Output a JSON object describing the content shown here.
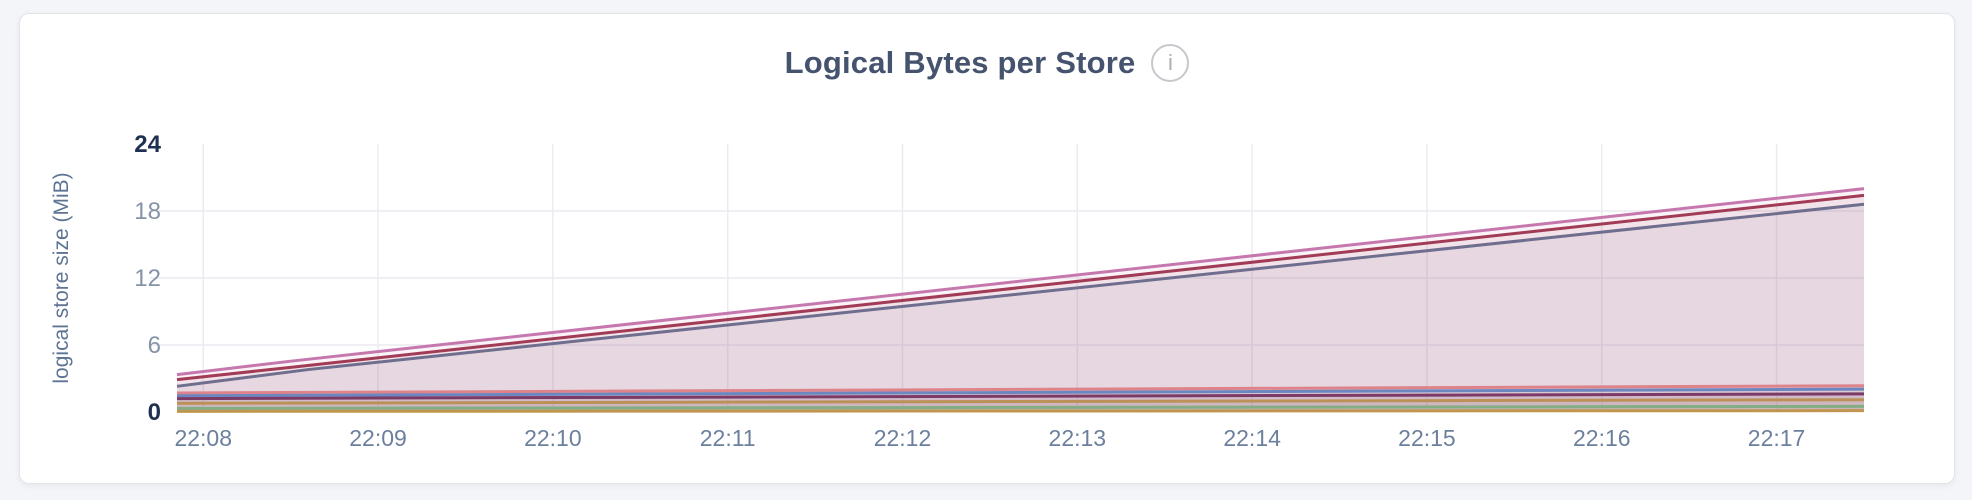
{
  "page": {
    "background": "#f4f5f8"
  },
  "header": {
    "title": "Logical Bytes per Store",
    "info_glyph": "i"
  },
  "chart_data": {
    "type": "area",
    "title": "Logical Bytes per Store",
    "xlabel": "",
    "ylabel": "logical store size (MiB)",
    "ylim": [
      0,
      24
    ],
    "y_ticks": [
      0,
      6,
      12,
      18,
      24
    ],
    "y_tick_emphasis": [
      0,
      24
    ],
    "y_gridlines": [
      6,
      12,
      18
    ],
    "grid": "on",
    "legend": "none",
    "x_domain_minutes": [
      427.85,
      437.5
    ],
    "x_ticks": [
      {
        "minute": 428,
        "label": "22:08"
      },
      {
        "minute": 429,
        "label": "22:09"
      },
      {
        "minute": 430,
        "label": "22:10"
      },
      {
        "minute": 431,
        "label": "22:11"
      },
      {
        "minute": 432,
        "label": "22:12"
      },
      {
        "minute": 433,
        "label": "22:13"
      },
      {
        "minute": 434,
        "label": "22:14"
      },
      {
        "minute": 435,
        "label": "22:15"
      },
      {
        "minute": 436,
        "label": "22:16"
      },
      {
        "minute": 437,
        "label": "22:17"
      }
    ],
    "series": [
      {
        "name": "series-1",
        "color": "#c678ae",
        "points": [
          [
            427.85,
            3.35
          ],
          [
            428.5,
            4.55
          ],
          [
            437.5,
            20.0
          ]
        ]
      },
      {
        "name": "series-2",
        "color": "#a23b55",
        "points": [
          [
            427.85,
            2.9
          ],
          [
            428.5,
            4.0
          ],
          [
            437.5,
            19.4
          ]
        ]
      },
      {
        "name": "series-3",
        "color": "#6f6e8e",
        "points": [
          [
            427.85,
            2.3
          ],
          [
            428.6,
            3.8
          ],
          [
            437.5,
            18.6
          ]
        ]
      },
      {
        "name": "series-4",
        "color": "#dd8389",
        "points": [
          [
            427.85,
            1.7
          ],
          [
            437.5,
            2.35
          ]
        ]
      },
      {
        "name": "series-5",
        "color": "#6c86c0",
        "points": [
          [
            427.85,
            1.45
          ],
          [
            437.5,
            2.05
          ]
        ]
      },
      {
        "name": "series-6",
        "color": "#7c3a66",
        "points": [
          [
            427.85,
            1.2
          ],
          [
            437.5,
            1.62
          ]
        ]
      },
      {
        "name": "series-7",
        "color": "#bb9157",
        "points": [
          [
            427.85,
            0.78
          ],
          [
            437.5,
            1.1
          ]
        ]
      },
      {
        "name": "series-8",
        "color": "#83ad85",
        "points": [
          [
            427.85,
            0.32
          ],
          [
            437.5,
            0.5
          ]
        ]
      },
      {
        "name": "series-9",
        "color": "#c0964f",
        "points": [
          [
            427.85,
            0.06
          ],
          [
            437.5,
            0.12
          ]
        ]
      }
    ],
    "area_fill_opacity": 0.09,
    "line_width": 3
  },
  "style": {
    "grid_color": "#ececf0",
    "y_tick_color": "#8593a8",
    "y_tick_strong_color": "#1e3150",
    "x_tick_color": "#6c809e",
    "axis_title_color": "#5d7494",
    "title_color": "#46536f",
    "info_border_color": "#c6c8cd",
    "info_glyph_color": "#a9adb4"
  }
}
